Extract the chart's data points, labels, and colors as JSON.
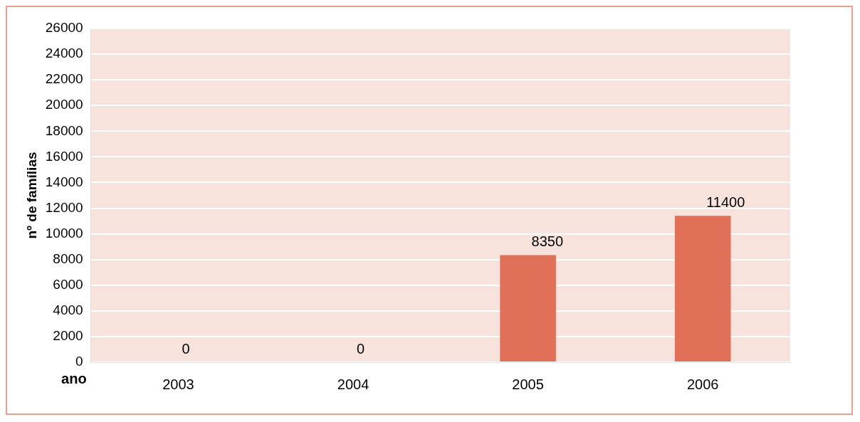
{
  "chart_data": {
    "type": "bar",
    "categories": [
      "2003",
      "2004",
      "2005",
      "2006"
    ],
    "values": [
      0,
      0,
      8350,
      11400
    ],
    "color": "#e07058",
    "ylabel": "nº de famílias",
    "xlabel": "ano",
    "ylim": [
      0,
      26000
    ],
    "yticks": [
      0,
      2000,
      4000,
      6000,
      8000,
      10000,
      12000,
      14000,
      16000,
      18000,
      20000,
      22000,
      24000,
      26000
    ],
    "grid": "y",
    "data_labels": true,
    "legend": false
  }
}
